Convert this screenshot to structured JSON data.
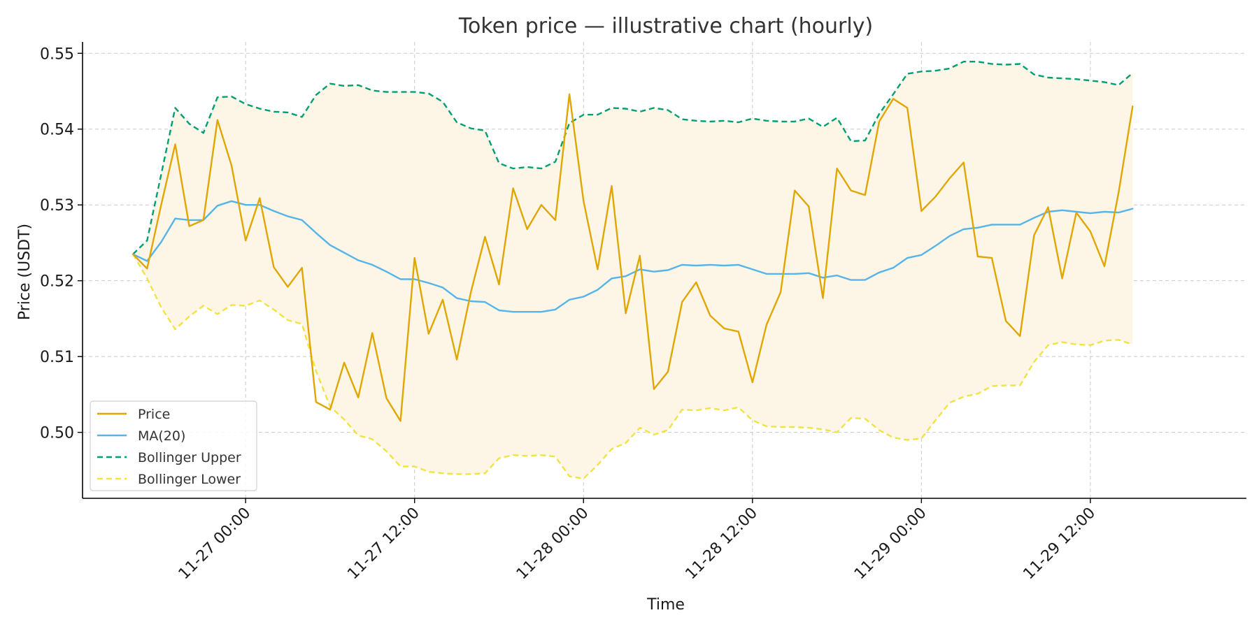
{
  "chart_data": {
    "type": "line",
    "title": "Token price — illustrative chart (hourly)",
    "xlabel": "Time",
    "ylabel": "Price (USDT)",
    "x_ticks": [
      "11-27 00:00",
      "11-27 12:00",
      "11-28 00:00",
      "11-28 12:00",
      "11-29 00:00",
      "11-29 12:00"
    ],
    "y_ticks": [
      "0.50",
      "0.51",
      "0.52",
      "0.53",
      "0.54",
      "0.55"
    ],
    "ylim": [
      0.4913,
      0.5515
    ],
    "xlim": [
      "11-26 12:25",
      "11-29 23:05"
    ],
    "x_start": "11-26 16:00",
    "x_step_hours": 1,
    "grid": true,
    "legend_position": "lower-left",
    "colors": {
      "price": "#E1A600",
      "ma": "#56B4E9",
      "upper": "#009E73",
      "lower": "#F0E442",
      "band_fill": "#FDF6E7"
    },
    "series": [
      {
        "name": "Price",
        "style": "solid",
        "values": [
          0.5235,
          0.5216,
          0.53,
          0.538,
          0.5272,
          0.528,
          0.5412,
          0.5352,
          0.5253,
          0.5309,
          0.5218,
          0.5192,
          0.5217,
          0.504,
          0.503,
          0.5092,
          0.5046,
          0.5131,
          0.5045,
          0.5015,
          0.523,
          0.513,
          0.5175,
          0.5096,
          0.5185,
          0.5258,
          0.5195,
          0.5322,
          0.5268,
          0.53,
          0.528,
          0.5446,
          0.5305,
          0.5215,
          0.5325,
          0.5157,
          0.5233,
          0.5057,
          0.508,
          0.5172,
          0.5198,
          0.5154,
          0.5137,
          0.5133,
          0.5066,
          0.5142,
          0.5185,
          0.5319,
          0.5298,
          0.5177,
          0.5348,
          0.5319,
          0.5313,
          0.541,
          0.544,
          0.5428,
          0.5292,
          0.5311,
          0.5335,
          0.5356,
          0.5232,
          0.523,
          0.5147,
          0.5127,
          0.526,
          0.5297,
          0.5203,
          0.529,
          0.5265,
          0.5219,
          0.5316,
          0.543
        ]
      },
      {
        "name": "MA(20)",
        "style": "solid",
        "values": [
          0.5235,
          0.5226,
          0.5251,
          0.5282,
          0.528,
          0.528,
          0.5299,
          0.5305,
          0.53,
          0.53,
          0.5292,
          0.5285,
          0.528,
          0.5263,
          0.5247,
          0.5237,
          0.5227,
          0.5221,
          0.5212,
          0.5202,
          0.5202,
          0.5197,
          0.5191,
          0.5177,
          0.5173,
          0.5172,
          0.5161,
          0.5159,
          0.5159,
          0.5159,
          0.5162,
          0.5175,
          0.5179,
          0.5188,
          0.5203,
          0.5206,
          0.5215,
          0.5212,
          0.5214,
          0.5221,
          0.522,
          0.5221,
          0.522,
          0.5221,
          0.5215,
          0.5209,
          0.5209,
          0.5209,
          0.521,
          0.5204,
          0.5207,
          0.5201,
          0.5201,
          0.5211,
          0.5217,
          0.523,
          0.5234,
          0.5246,
          0.5259,
          0.5268,
          0.527,
          0.5274,
          0.5274,
          0.5274,
          0.5283,
          0.5291,
          0.5293,
          0.5291,
          0.5289,
          0.5291,
          0.529,
          0.5295
        ]
      },
      {
        "name": "Bollinger Upper",
        "style": "dashed",
        "values": [
          0.5235,
          0.5253,
          0.534,
          0.5428,
          0.5407,
          0.5395,
          0.5442,
          0.5443,
          0.5433,
          0.5427,
          0.5423,
          0.5422,
          0.5416,
          0.5445,
          0.546,
          0.5457,
          0.5458,
          0.5451,
          0.5449,
          0.5449,
          0.5449,
          0.5447,
          0.5436,
          0.5409,
          0.5401,
          0.5398,
          0.5355,
          0.5348,
          0.535,
          0.5348,
          0.5357,
          0.5408,
          0.5419,
          0.5419,
          0.5428,
          0.5427,
          0.5423,
          0.5428,
          0.5425,
          0.5413,
          0.5411,
          0.541,
          0.5411,
          0.5409,
          0.5414,
          0.5411,
          0.541,
          0.541,
          0.5414,
          0.5403,
          0.5415,
          0.5384,
          0.5385,
          0.542,
          0.5446,
          0.5473,
          0.5476,
          0.5477,
          0.548,
          0.5489,
          0.5489,
          0.5486,
          0.5485,
          0.5486,
          0.5472,
          0.5468,
          0.5467,
          0.5466,
          0.5464,
          0.5462,
          0.5458,
          0.5474
        ]
      },
      {
        "name": "Bollinger Lower",
        "style": "dashed",
        "values": [
          0.5235,
          0.5203,
          0.5165,
          0.5136,
          0.5153,
          0.5167,
          0.5156,
          0.5168,
          0.5167,
          0.5174,
          0.5162,
          0.5148,
          0.5143,
          0.5081,
          0.5034,
          0.5017,
          0.4996,
          0.4991,
          0.4975,
          0.4955,
          0.4955,
          0.4948,
          0.4946,
          0.4945,
          0.4945,
          0.4946,
          0.4966,
          0.497,
          0.4969,
          0.497,
          0.4968,
          0.4942,
          0.4939,
          0.4957,
          0.4978,
          0.4986,
          0.5006,
          0.4997,
          0.5003,
          0.503,
          0.5029,
          0.5032,
          0.5029,
          0.5033,
          0.5016,
          0.5008,
          0.5007,
          0.5007,
          0.5006,
          0.5004,
          0.5,
          0.5019,
          0.5018,
          0.5003,
          0.4993,
          0.499,
          0.4992,
          0.5016,
          0.5039,
          0.5047,
          0.5051,
          0.5061,
          0.5062,
          0.5062,
          0.5093,
          0.5115,
          0.5119,
          0.5116,
          0.5115,
          0.5121,
          0.5122,
          0.5116
        ]
      }
    ]
  }
}
